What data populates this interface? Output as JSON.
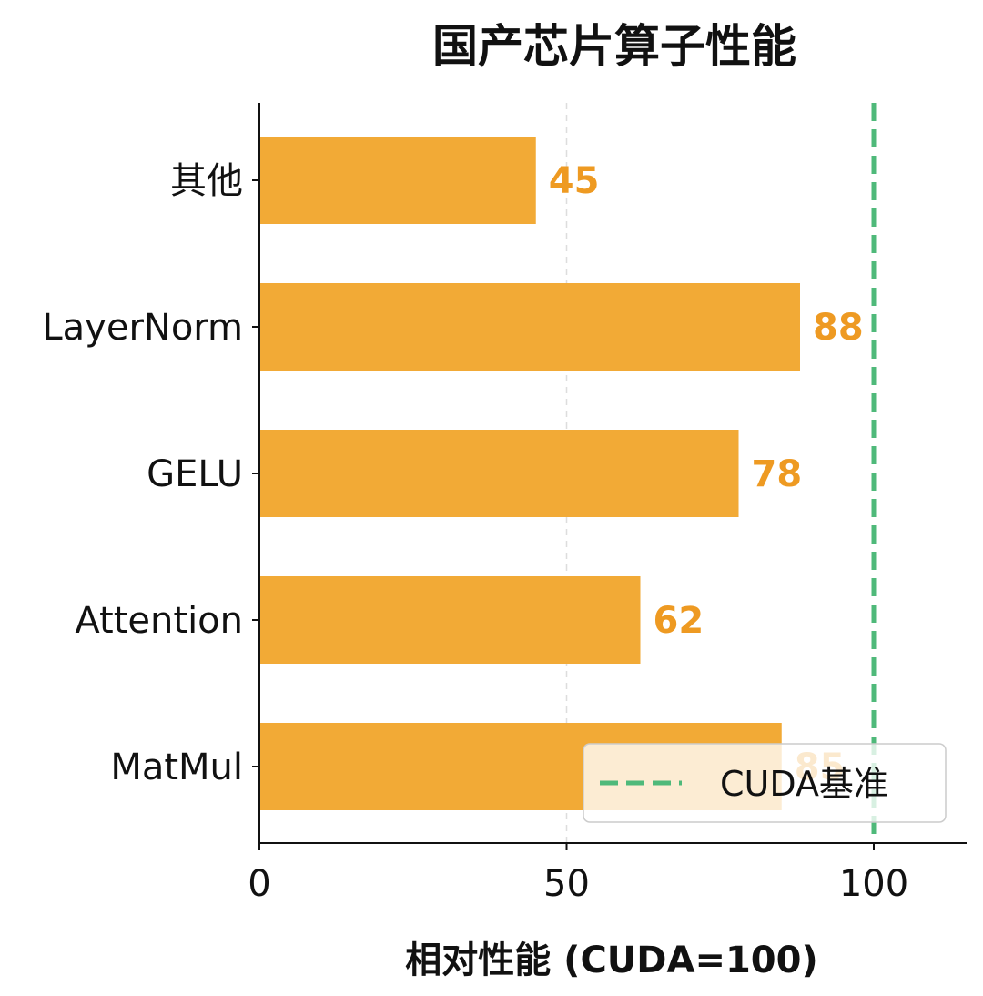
{
  "chart_data": {
    "type": "bar",
    "orientation": "horizontal",
    "title": "国产芯片算子性能",
    "xlabel": "相对性能 (CUDA=100)",
    "ylabel": "",
    "categories": [
      "MatMul",
      "Attention",
      "GELU",
      "LayerNorm",
      "其他"
    ],
    "values": [
      85,
      62,
      78,
      88,
      45
    ],
    "xlim": [
      0,
      115
    ],
    "xticks": [
      0,
      50,
      100
    ],
    "grid": "x-at-50",
    "bar_color": "#F2AA36",
    "label_color": "#EE9A22",
    "reference_line": {
      "value": 100,
      "label": "CUDA基准",
      "color": "#4FB97A",
      "style": "dashed"
    },
    "legend": {
      "placement": "bottom-right",
      "entries": [
        "CUDA基准"
      ]
    }
  }
}
